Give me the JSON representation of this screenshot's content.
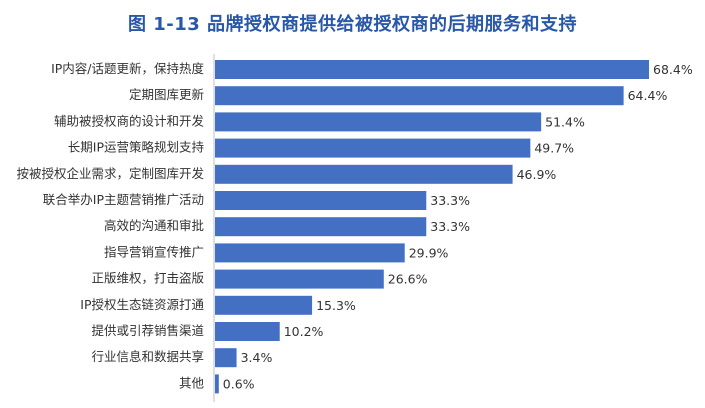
{
  "title": "图 1-13  品牌授权商提供给被授权商的后期服务和支持",
  "chart_data": {
    "type": "bar",
    "orientation": "horizontal",
    "title": "图 1-13  品牌授权商提供给被授权商的后期服务和支持",
    "xlabel": "",
    "ylabel": "",
    "xlim": [
      0,
      70
    ],
    "grid": false,
    "legend": "none",
    "bar_color": "#4470c4",
    "categories": [
      "IP内容/话题更新，保持热度",
      "定期图库更新",
      "辅助被授权商的设计和开发",
      "长期IP运营策略规划支持",
      "按被授权企业需求，定制图库开发",
      "联合举办IP主题营销推广活动",
      "高效的沟通和审批",
      "指导营销宣传推广",
      "正版维权，打击盗版",
      "IP授权生态链资源打通",
      "提供或引荐销售渠道",
      "行业信息和数据共享",
      "其他"
    ],
    "values": [
      68.4,
      64.4,
      51.4,
      49.7,
      46.9,
      33.3,
      33.3,
      29.9,
      26.6,
      15.3,
      10.2,
      3.4,
      0.6
    ],
    "value_labels": [
      "68.4%",
      "64.4%",
      "51.4%",
      "49.7%",
      "46.9%",
      "33.3%",
      "33.3%",
      "29.9%",
      "26.6%",
      "15.3%",
      "10.2%",
      "3.4%",
      "0.6%"
    ]
  }
}
